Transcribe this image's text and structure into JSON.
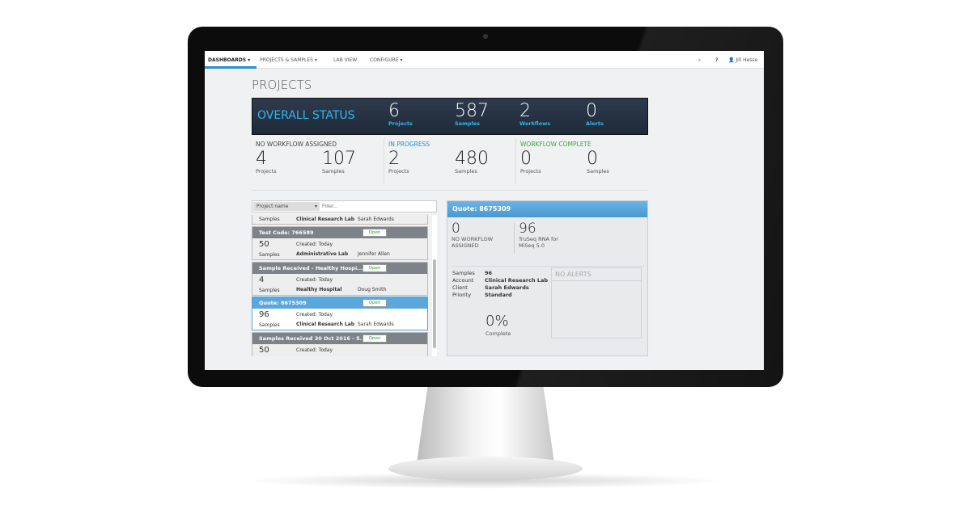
{
  "nav": {
    "items": [
      "DASHBOARDS",
      "PROJECTS & SAMPLES",
      "LAB VIEW",
      "CONFIGURE"
    ],
    "user": "Jill Hesse"
  },
  "page_title": "PROJECTS",
  "overall": {
    "title": "OVERALL STATUS",
    "stats": [
      {
        "value": "6",
        "label": "Projects"
      },
      {
        "value": "587",
        "label": "Samples"
      },
      {
        "value": "2",
        "label": "Workflows"
      },
      {
        "value": "0",
        "label": "Alerts"
      }
    ]
  },
  "groups": [
    {
      "title": "NO WORKFLOW ASSIGNED",
      "color": "#444444",
      "projects": "4",
      "samples": "107"
    },
    {
      "title": "IN PROGRESS",
      "color": "#1a8fd0",
      "projects": "2",
      "samples": "480"
    },
    {
      "title": "WORKFLOW COMPLETE",
      "color": "#3aa53a",
      "projects": "0",
      "samples": "0"
    }
  ],
  "labels": {
    "projects": "Projects",
    "samples": "Samples",
    "open": "Open",
    "created": "Created: Today"
  },
  "filter": {
    "select": "Project name",
    "placeholder": "Filter..."
  },
  "partial": {
    "samples": "Samples",
    "lab": "Clinical Research Lab",
    "person": "Sarah Edwards"
  },
  "cards": [
    {
      "title": "Test Code: 766589",
      "count": "50",
      "lab": "Administrative Lab",
      "person": "Jennifer Allen"
    },
    {
      "title": "Sample Received - Healthy Hospi...",
      "count": "4",
      "lab": "Healthy Hospital",
      "person": "Doug Smith"
    },
    {
      "title": "Quote: 8675309",
      "count": "96",
      "lab": "Clinical Research Lab",
      "person": "Sarah Edwards"
    },
    {
      "title": "Samples Received 30 Oct 2016 - 5...",
      "count": "50",
      "lab": "",
      "person": ""
    }
  ],
  "detail": {
    "title": "Quote: 8675309",
    "a_value": "0",
    "a_label": "NO WORKFLOW ASSIGNED",
    "b_value": "96",
    "b_label": "TruSeq RNA for MiSeq 5.0",
    "fields": [
      [
        "Samples",
        "96"
      ],
      [
        "Account",
        "Clinical Research Lab"
      ],
      [
        "Client",
        "Sarah Edwards"
      ],
      [
        "Priority",
        "Standard"
      ]
    ],
    "percent": "0%",
    "percent_label": "Complete",
    "progress": 0,
    "alerts": "NO ALERTS"
  }
}
